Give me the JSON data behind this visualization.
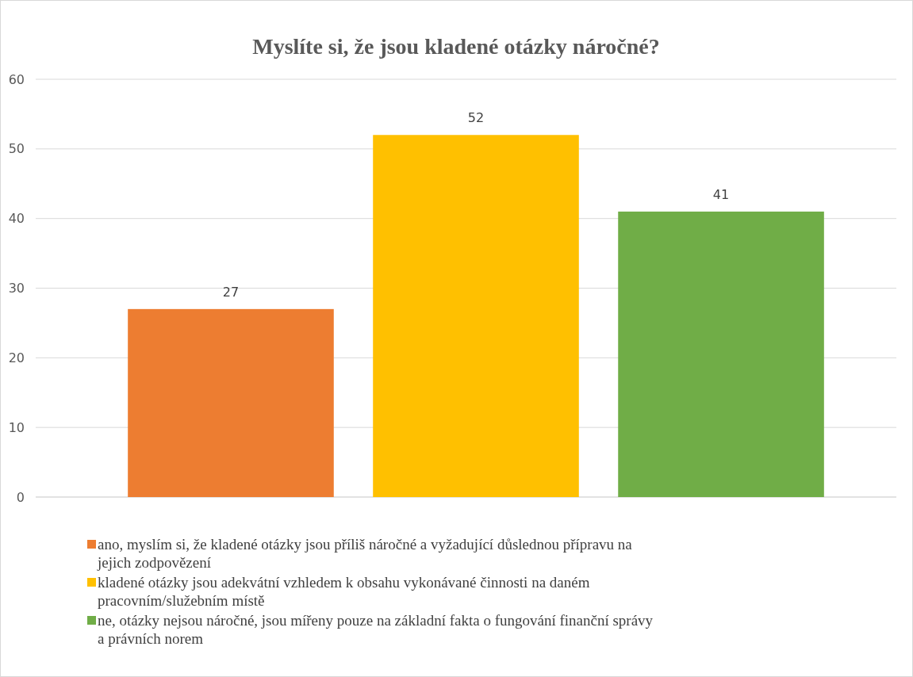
{
  "chart_data": {
    "type": "bar",
    "title": "Myslíte si, že jsou kladené otázky náročné?",
    "categories": [
      null
    ],
    "series": [
      {
        "name": "ano, myslím si, že kladené otázky jsou příliš náročné a vyžadující důslednou přípravu na jejich zodpovězení",
        "color": "#ed7d31",
        "values": [
          27
        ]
      },
      {
        "name": "kladené otázky jsou adekvátní vzhledem k obsahu vykonávané činnosti na daném pracovním/služebním místě",
        "color": "#ffc000",
        "values": [
          52
        ]
      },
      {
        "name": "ne, otázky nejsou náročné, jsou mířeny pouze na základní fakta o fungování finanční správy a právních norem",
        "color": "#70ad47",
        "values": [
          41
        ]
      }
    ],
    "ylim": [
      0,
      60
    ],
    "yticks": [
      0,
      10,
      20,
      30,
      40,
      50,
      60
    ],
    "grid": "y",
    "legend": "bottom",
    "data_labels": true
  }
}
